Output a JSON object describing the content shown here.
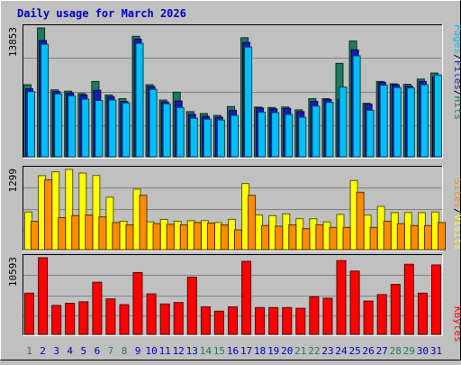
{
  "chart_data": {
    "type": "bar",
    "title": "Daily usage for March 2026",
    "categories": [
      "1",
      "2",
      "3",
      "4",
      "5",
      "6",
      "7",
      "8",
      "9",
      "10",
      "11",
      "12",
      "13",
      "14",
      "15",
      "16",
      "17",
      "18",
      "19",
      "20",
      "21",
      "22",
      "23",
      "24",
      "25",
      "26",
      "27",
      "28",
      "29",
      "30",
      "31"
    ],
    "weekend_days": [
      "1",
      "7",
      "8",
      "14",
      "15",
      "21",
      "22",
      "28",
      "29"
    ],
    "panels": [
      {
        "id": "hits-files-pages",
        "ymax_label": "13853",
        "ymax": 13853,
        "series": [
          {
            "name": "Hits",
            "color": "#1f7a5c",
            "values": [
              7750,
              13853,
              7200,
              7050,
              6800,
              8100,
              6650,
              6250,
              12950,
              7750,
              6100,
              6950,
              4850,
              4650,
              4450,
              5400,
              12800,
              5350,
              5300,
              5350,
              5050,
              6250,
              6250,
              10050,
              12450,
              5750,
              8100,
              7850,
              7800,
              8350,
              9000
            ]
          },
          {
            "name": "Files",
            "color": "#1a1ab4",
            "values": [
              7300,
              12500,
              7000,
              6850,
              6650,
              7150,
              6450,
              5950,
              12650,
              7550,
              5900,
              6000,
              4550,
              4350,
              4250,
              5000,
              12300,
              5250,
              5150,
              5200,
              4850,
              5950,
              6150,
              6150,
              11500,
              5650,
              8000,
              7750,
              7600,
              8100,
              8600
            ]
          },
          {
            "name": "Pages",
            "color": "#00bfff",
            "values": [
              7000,
              12100,
              6750,
              6550,
              6200,
              6050,
              6100,
              5800,
              12200,
              7250,
              5700,
              5300,
              4150,
              4050,
              3950,
              4450,
              11800,
              4800,
              4750,
              4550,
              4250,
              5450,
              5850,
              7500,
              10850,
              5000,
              7700,
              7450,
              7400,
              7750,
              8800
            ]
          }
        ]
      },
      {
        "id": "visits-sites",
        "ymax_label": "1299",
        "ymax": 1299,
        "series": [
          {
            "name": "Visits",
            "color": "#ffff00",
            "values": [
              610,
              1199,
              1260,
              1299,
              1240,
              1200,
              850,
              460,
              980,
              450,
              490,
              460,
              470,
              470,
              440,
              490,
              1070,
              560,
              550,
              580,
              500,
              500,
              450,
              570,
              1120,
              560,
              700,
              600,
              600,
              600,
              610
            ]
          },
          {
            "name": "Sites",
            "color": "#ff8c00",
            "values": [
              460,
              1130,
              520,
              550,
              560,
              530,
              440,
              400,
              880,
              420,
              410,
              400,
              440,
              430,
              400,
              320,
              880,
              390,
              380,
              400,
              340,
              400,
              360,
              360,
              930,
              360,
              460,
              420,
              390,
              390,
              440
            ]
          }
        ]
      },
      {
        "id": "kbytes",
        "ymax_label": "10593",
        "ymax": 10593,
        "series": [
          {
            "name": "KBytes",
            "color": "#ff0000",
            "values": [
              5700,
              10593,
              4000,
              4300,
              4500,
              7200,
              4900,
              4100,
              8550,
              5600,
              4200,
              4400,
              7900,
              3800,
              3200,
              3800,
              10100,
              3700,
              3700,
              3700,
              3600,
              5200,
              5000,
              10200,
              8750,
              4600,
              5500,
              6900,
              9700,
              5700,
              9600
            ]
          }
        ]
      }
    ],
    "legend": [
      {
        "text": "Pages",
        "color": "#00bfff"
      },
      {
        "text": "/",
        "color": "#000000"
      },
      {
        "text": "Files",
        "color": "#1a1ab4"
      },
      {
        "text": "/",
        "color": "#000000"
      },
      {
        "text": "Hits",
        "color": "#1f7a5c"
      },
      {
        "text": "Sites",
        "color": "#ff8c00"
      },
      {
        "text": "/",
        "color": "#000000"
      },
      {
        "text": "Visits",
        "color": "#ffff00"
      },
      {
        "text": "KBytes",
        "color": "#ff0000"
      }
    ],
    "colors": {
      "background": "#c0c0c0",
      "plot": "#c0c0c0",
      "grid": "#808080",
      "title": "#0000c0",
      "weekend_label": "#1f7a5c",
      "weekday_label": "#0000c0"
    }
  }
}
